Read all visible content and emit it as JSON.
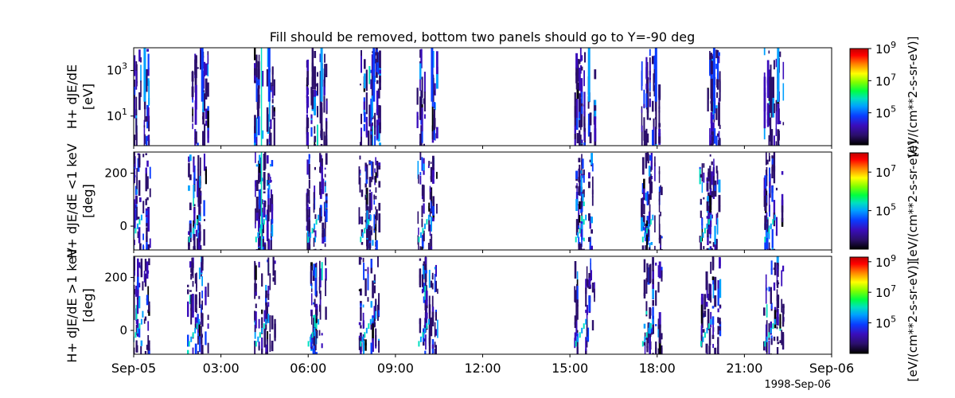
{
  "chart_data": {
    "type": "heatmap",
    "title": "Fill should be removed, bottom two panels should go to Y=-90 deg",
    "x_ticks": [
      "Sep-05",
      "03:00",
      "06:00",
      "09:00",
      "12:00",
      "15:00",
      "18:00",
      "21:00",
      "Sep-06"
    ],
    "x_date_label": "1998-Sep-06",
    "xlim": [
      "1998-09-05T00:00",
      "1998-09-06T00:00"
    ],
    "panels": [
      {
        "ylabel": [
          "H+ dJE/dE",
          "[eV]"
        ],
        "yscale": "log",
        "yticks": [
          {
            "base": "10",
            "exp": "3",
            "value": 1000
          },
          {
            "base": "10",
            "exp": "1",
            "value": 10
          }
        ],
        "ylim": [
          0.5,
          10000
        ],
        "colorbar": {
          "label": "[eV/(cm**2-s-sr-eV)]",
          "scale": "log",
          "range": [
            1000,
            1000000000
          ],
          "ticks": [
            {
              "base": "10",
              "exp": "9"
            },
            {
              "base": "10",
              "exp": "7"
            },
            {
              "base": "10",
              "exp": "5"
            }
          ]
        }
      },
      {
        "ylabel": [
          "H+ dJE/dE <1 keV",
          "[deg]"
        ],
        "yscale": "linear",
        "yticks": [
          {
            "label": "200",
            "value": 200
          },
          {
            "label": "0",
            "value": 0
          }
        ],
        "ylim": [
          -90,
          280
        ],
        "colorbar": {
          "label": "[eV/(cm**2-s-sr-eV)]",
          "scale": "log",
          "range": [
            1000,
            100000000
          ],
          "ticks": [
            {
              "base": "10",
              "exp": "7"
            },
            {
              "base": "10",
              "exp": "5"
            }
          ]
        }
      },
      {
        "ylabel": [
          "H+ dJE/dE >1 keV",
          "[deg]"
        ],
        "yscale": "linear",
        "yticks": [
          {
            "label": "200",
            "value": 200
          },
          {
            "label": "0",
            "value": 0
          }
        ],
        "ylim": [
          -90,
          280
        ],
        "colorbar": {
          "label": "[eV/(cm**2-s-sr-eV)]",
          "scale": "log",
          "range": [
            1000,
            2000000000
          ],
          "ticks": [
            {
              "base": "10",
              "exp": "9"
            },
            {
              "base": "10",
              "exp": "7"
            },
            {
              "base": "10",
              "exp": "5"
            }
          ]
        }
      }
    ],
    "passes_hours": [
      0.12,
      2.1,
      4.4,
      6.2,
      8.0,
      10.0,
      15.4,
      17.7,
      19.7,
      21.9
    ],
    "colormap": [
      "#000000",
      "#2b0f6b",
      "#3a0dbb",
      "#0a3cff",
      "#00a0ff",
      "#00e0c0",
      "#00ff40",
      "#80ff00",
      "#ffff00",
      "#ff8000",
      "#ff0000",
      "#c00000"
    ]
  }
}
